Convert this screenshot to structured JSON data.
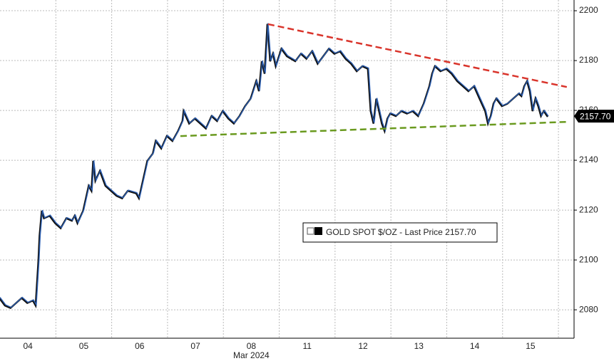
{
  "chart_data": {
    "type": "line",
    "x": [
      0,
      0.1,
      0.2,
      0.3,
      0.4,
      0.5,
      0.6,
      0.65,
      0.7,
      0.72,
      0.76,
      0.8,
      0.9,
      1.0,
      1.1,
      1.2,
      1.3,
      1.35,
      1.4,
      1.5,
      1.55,
      1.6,
      1.65,
      1.68,
      1.72,
      1.8,
      1.9,
      2.0,
      2.1,
      2.2,
      2.3,
      2.45,
      2.5,
      2.6,
      2.65,
      2.75,
      2.8,
      2.9,
      3.0,
      3.1,
      3.2,
      3.28,
      3.3,
      3.4,
      3.5,
      3.6,
      3.7,
      3.8,
      3.9,
      4.0,
      4.1,
      4.2,
      4.3,
      4.4,
      4.5,
      4.6,
      4.65,
      4.7,
      4.75,
      4.8,
      4.85,
      4.9,
      4.95,
      5.05,
      5.15,
      5.3,
      5.4,
      5.5,
      5.6,
      5.7,
      5.8,
      5.9,
      6.0,
      6.1,
      6.2,
      6.3,
      6.4,
      6.5,
      6.6,
      6.65,
      6.7,
      6.75,
      6.8,
      6.85,
      6.9,
      6.95,
      7.0,
      7.1,
      7.2,
      7.3,
      7.4,
      7.5,
      7.6,
      7.7,
      7.75,
      7.8,
      7.9,
      8.0,
      8.1,
      8.2,
      8.3,
      8.4,
      8.5,
      8.6,
      8.7,
      8.75,
      8.8,
      8.85,
      8.9,
      9.0,
      9.1,
      9.2,
      9.3,
      9.35,
      9.4,
      9.45,
      9.5,
      9.55,
      9.6,
      9.65,
      9.7,
      9.75,
      9.82
    ],
    "series": [
      {
        "name": "GOLD SPOT $/OZ - Last Price 2157.70",
        "color": "#2a5db0",
        "values": [
          2085,
          2082,
          2081,
          2083,
          2085,
          2083,
          2084,
          2082,
          2100,
          2110,
          2120,
          2117,
          2118,
          2115,
          2113,
          2117,
          2116,
          2118,
          2115,
          2120,
          2125,
          2130,
          2128,
          2140,
          2132,
          2136,
          2130,
          2128,
          2126,
          2125,
          2128,
          2127,
          2125,
          2135,
          2140,
          2143,
          2148,
          2145,
          2150,
          2148,
          2152,
          2156,
          2160,
          2155,
          2157,
          2155,
          2153,
          2158,
          2156,
          2160,
          2157,
          2155,
          2158,
          2162,
          2165,
          2172,
          2168,
          2180,
          2175,
          2195,
          2180,
          2183,
          2178,
          2185,
          2182,
          2180,
          2183,
          2181,
          2184,
          2179,
          2182,
          2185,
          2183,
          2184,
          2181,
          2179,
          2176,
          2178,
          2177,
          2160,
          2155,
          2165,
          2160,
          2155,
          2152,
          2157,
          2159,
          2158,
          2160,
          2159,
          2160,
          2158,
          2163,
          2170,
          2175,
          2178,
          2176,
          2177,
          2175,
          2172,
          2170,
          2168,
          2170,
          2165,
          2160,
          2155,
          2158,
          2163,
          2165,
          2162,
          2163,
          2165,
          2167,
          2166,
          2170,
          2172,
          2168,
          2160,
          2165,
          2162,
          2158,
          2160,
          2157.7
        ]
      }
    ],
    "trendlines": [
      {
        "color": "#d9342b",
        "x": [
          4.8,
          10.15
        ],
        "y": [
          2194.6,
          2169.4
        ]
      },
      {
        "color": "#6a9a1f",
        "x": [
          3.23,
          10.15
        ],
        "y": [
          2149.7,
          2155.4
        ]
      }
    ],
    "last_price": {
      "value": 2157.7,
      "label": "2157.70"
    },
    "xlim": [
      0,
      10.28
    ],
    "xticks": [
      {
        "value": 0.5,
        "label": "04"
      },
      {
        "value": 1.5,
        "label": "05"
      },
      {
        "value": 2.5,
        "label": "06"
      },
      {
        "value": 3.5,
        "label": "07"
      },
      {
        "value": 4.5,
        "label": "08"
      },
      {
        "value": 5.5,
        "label": "11"
      },
      {
        "value": 6.5,
        "label": "12"
      },
      {
        "value": 7.5,
        "label": "13"
      },
      {
        "value": 8.5,
        "label": "14"
      },
      {
        "value": 9.5,
        "label": "15"
      }
    ],
    "x_sublabel": {
      "value": 4.5,
      "label": "Mar 2024"
    },
    "xgrid": [
      1,
      2,
      3,
      4,
      5,
      6,
      7,
      8,
      9,
      10
    ],
    "ylim": [
      2068.6,
      2204.3
    ],
    "yticks": [
      2080,
      2100,
      2120,
      2140,
      2160,
      2180,
      2200
    ],
    "grid": true
  }
}
